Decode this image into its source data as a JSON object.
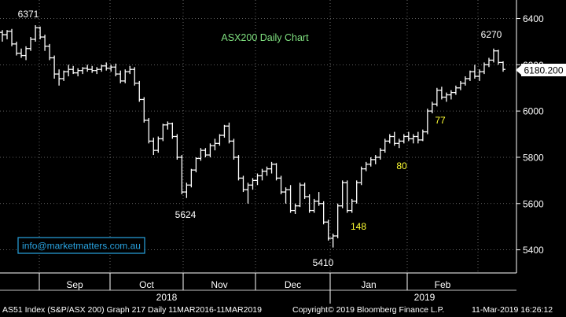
{
  "chart_data": {
    "type": "ohlc",
    "title": "ASX200 Daily Chart",
    "ylim": [
      5300,
      6480
    ],
    "y_ticks": [
      5400,
      5600,
      5800,
      6000,
      6200,
      6400
    ],
    "y_tick_labels": [
      "5400",
      "5600",
      "5800",
      "6000",
      "6200",
      "6400"
    ],
    "months": [
      "Sep",
      "Oct",
      "Nov",
      "Dec",
      "Jan",
      "Feb"
    ],
    "years": [
      "2018",
      "2019"
    ],
    "last_price_label": "6180.200",
    "last_price": 6180.2,
    "annotations": [
      "6371",
      "5624",
      "5410",
      "6270",
      "148",
      "80",
      "77"
    ],
    "watermark": "info@marketmatters.com.au",
    "colors": {
      "bars": "#ffffff",
      "background": "#000000",
      "title": "#7fe07f",
      "highlight": "#ffff33",
      "watermark_border": "#29a3e0"
    },
    "bars": [
      [
        6340,
        6350,
        6300,
        6330
      ],
      [
        6330,
        6350,
        6310,
        6345
      ],
      [
        6345,
        6355,
        6280,
        6290
      ],
      [
        6290,
        6300,
        6240,
        6250
      ],
      [
        6250,
        6270,
        6230,
        6240
      ],
      [
        6240,
        6280,
        6220,
        6270
      ],
      [
        6270,
        6320,
        6260,
        6310
      ],
      [
        6310,
        6371,
        6300,
        6360
      ],
      [
        6360,
        6365,
        6310,
        6320
      ],
      [
        6320,
        6330,
        6260,
        6280
      ],
      [
        6280,
        6290,
        6220,
        6230
      ],
      [
        6230,
        6240,
        6140,
        6160
      ],
      [
        6160,
        6180,
        6110,
        6140
      ],
      [
        6140,
        6175,
        6130,
        6170
      ],
      [
        6170,
        6200,
        6150,
        6180
      ],
      [
        6180,
        6195,
        6160,
        6165
      ],
      [
        6165,
        6185,
        6150,
        6175
      ],
      [
        6175,
        6190,
        6160,
        6185
      ],
      [
        6185,
        6200,
        6170,
        6180
      ],
      [
        6180,
        6195,
        6165,
        6175
      ],
      [
        6175,
        6190,
        6160,
        6180
      ],
      [
        6180,
        6200,
        6170,
        6195
      ],
      [
        6195,
        6210,
        6175,
        6185
      ],
      [
        6185,
        6200,
        6170,
        6190
      ],
      [
        6190,
        6205,
        6150,
        6160
      ],
      [
        6160,
        6175,
        6120,
        6130
      ],
      [
        6130,
        6180,
        6120,
        6170
      ],
      [
        6170,
        6195,
        6160,
        6180
      ],
      [
        6180,
        6190,
        6110,
        6120
      ],
      [
        6120,
        6130,
        6040,
        6050
      ],
      [
        6050,
        6060,
        5950,
        5960
      ],
      [
        5960,
        5970,
        5860,
        5870
      ],
      [
        5870,
        5885,
        5810,
        5830
      ],
      [
        5830,
        5890,
        5820,
        5880
      ],
      [
        5880,
        5945,
        5870,
        5940
      ],
      [
        5940,
        5955,
        5920,
        5945
      ],
      [
        5945,
        5950,
        5880,
        5890
      ],
      [
        5890,
        5900,
        5790,
        5800
      ],
      [
        5800,
        5810,
        5640,
        5650
      ],
      [
        5650,
        5690,
        5624,
        5680
      ],
      [
        5680,
        5750,
        5670,
        5745
      ],
      [
        5745,
        5800,
        5735,
        5795
      ],
      [
        5795,
        5840,
        5785,
        5830
      ],
      [
        5830,
        5840,
        5800,
        5810
      ],
      [
        5810,
        5860,
        5800,
        5850
      ],
      [
        5850,
        5880,
        5830,
        5860
      ],
      [
        5860,
        5900,
        5850,
        5895
      ],
      [
        5895,
        5940,
        5885,
        5935
      ],
      [
        5935,
        5950,
        5860,
        5870
      ],
      [
        5870,
        5880,
        5790,
        5800
      ],
      [
        5800,
        5810,
        5700,
        5710
      ],
      [
        5710,
        5720,
        5650,
        5660
      ],
      [
        5660,
        5690,
        5600,
        5680
      ],
      [
        5680,
        5710,
        5660,
        5700
      ],
      [
        5700,
        5730,
        5680,
        5720
      ],
      [
        5720,
        5750,
        5700,
        5740
      ],
      [
        5740,
        5760,
        5720,
        5750
      ],
      [
        5750,
        5780,
        5730,
        5770
      ],
      [
        5770,
        5775,
        5700,
        5710
      ],
      [
        5710,
        5720,
        5640,
        5650
      ],
      [
        5650,
        5670,
        5600,
        5660
      ],
      [
        5660,
        5680,
        5560,
        5570
      ],
      [
        5570,
        5600,
        5555,
        5590
      ],
      [
        5590,
        5690,
        5585,
        5680
      ],
      [
        5680,
        5690,
        5620,
        5630
      ],
      [
        5630,
        5640,
        5560,
        5570
      ],
      [
        5570,
        5620,
        5560,
        5610
      ],
      [
        5610,
        5650,
        5590,
        5600
      ],
      [
        5600,
        5610,
        5510,
        5520
      ],
      [
        5520,
        5530,
        5440,
        5450
      ],
      [
        5450,
        5470,
        5410,
        5460
      ],
      [
        5460,
        5600,
        5450,
        5590
      ],
      [
        5590,
        5700,
        5580,
        5690
      ],
      [
        5690,
        5700,
        5560,
        5570
      ],
      [
        5570,
        5620,
        5560,
        5610
      ],
      [
        5610,
        5700,
        5600,
        5690
      ],
      [
        5690,
        5760,
        5680,
        5750
      ],
      [
        5750,
        5780,
        5740,
        5770
      ],
      [
        5770,
        5800,
        5760,
        5790
      ],
      [
        5790,
        5810,
        5770,
        5800
      ],
      [
        5800,
        5840,
        5790,
        5830
      ],
      [
        5830,
        5880,
        5820,
        5870
      ],
      [
        5870,
        5900,
        5860,
        5890
      ],
      [
        5890,
        5910,
        5850,
        5860
      ],
      [
        5860,
        5880,
        5840,
        5870
      ],
      [
        5870,
        5900,
        5860,
        5890
      ],
      [
        5890,
        5910,
        5870,
        5880
      ],
      [
        5880,
        5900,
        5860,
        5890
      ],
      [
        5890,
        5910,
        5860,
        5875
      ],
      [
        5875,
        5920,
        5870,
        5910
      ],
      [
        5910,
        6010,
        5900,
        6000
      ],
      [
        6000,
        6040,
        5990,
        6030
      ],
      [
        6030,
        6100,
        6020,
        6090
      ],
      [
        6090,
        6105,
        6050,
        6060
      ],
      [
        6060,
        6080,
        6040,
        6070
      ],
      [
        6070,
        6090,
        6050,
        6080
      ],
      [
        6080,
        6110,
        6070,
        6100
      ],
      [
        6100,
        6130,
        6090,
        6120
      ],
      [
        6120,
        6150,
        6110,
        6140
      ],
      [
        6140,
        6175,
        6130,
        6170
      ],
      [
        6170,
        6200,
        6140,
        6150
      ],
      [
        6150,
        6180,
        6130,
        6170
      ],
      [
        6170,
        6210,
        6160,
        6200
      ],
      [
        6200,
        6230,
        6190,
        6220
      ],
      [
        6220,
        6270,
        6210,
        6260
      ],
      [
        6260,
        6265,
        6200,
        6210
      ],
      [
        6210,
        6215,
        6170,
        6180
      ]
    ]
  },
  "footer": {
    "left": "AS51 Index (S&P/ASX 200) Graph 217  Daily 11MAR2016-11MAR2019",
    "center": "Copyright© 2019 Bloomberg Finance L.P.",
    "right": "11-Mar-2019 16:26:12"
  }
}
